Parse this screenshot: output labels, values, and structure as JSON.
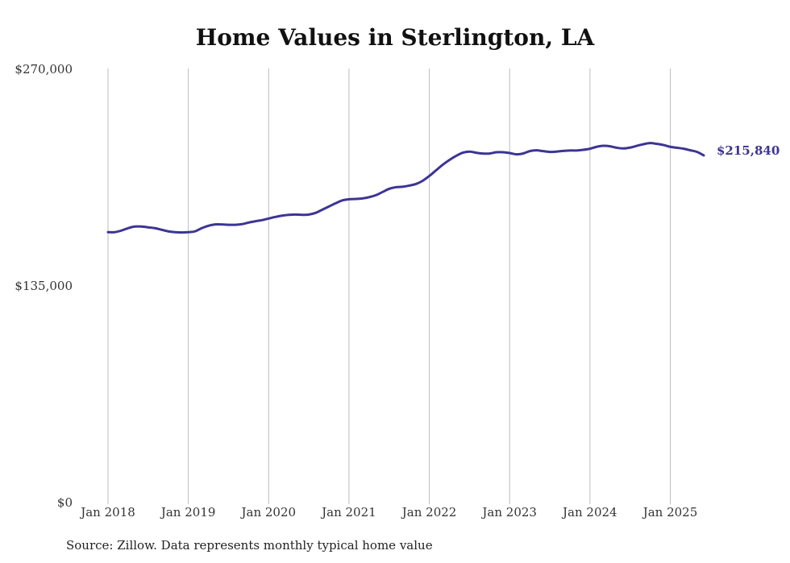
{
  "chart_data": {
    "type": "line",
    "title": "Home Values in Sterlington, LA",
    "xlabel": "",
    "ylabel": "",
    "ylim": [
      0,
      270000
    ],
    "y_ticks": [
      "$0",
      "$135,000",
      "$270,000"
    ],
    "y_tick_values": [
      0,
      135000,
      270000
    ],
    "x_ticks": [
      "Jan 2018",
      "Jan 2019",
      "Jan 2020",
      "Jan 2021",
      "Jan 2022",
      "Jan 2023",
      "Jan 2024",
      "Jan 2025"
    ],
    "x_tick_values": [
      "2018-01",
      "2019-01",
      "2020-01",
      "2021-01",
      "2022-01",
      "2023-01",
      "2024-01",
      "2025-01"
    ],
    "x_range": [
      "2018-01",
      "2025-06"
    ],
    "grid": "vertical",
    "legend": "none",
    "end_label": "$215,840",
    "series": [
      {
        "color": "#3b3594",
        "x": [
          "2018-01",
          "2018-02",
          "2018-03",
          "2018-04",
          "2018-05",
          "2018-06",
          "2018-07",
          "2018-08",
          "2018-09",
          "2018-10",
          "2018-11",
          "2018-12",
          "2019-01",
          "2019-02",
          "2019-03",
          "2019-04",
          "2019-05",
          "2019-06",
          "2019-07",
          "2019-08",
          "2019-09",
          "2019-10",
          "2019-11",
          "2019-12",
          "2020-01",
          "2020-02",
          "2020-03",
          "2020-04",
          "2020-05",
          "2020-06",
          "2020-07",
          "2020-08",
          "2020-09",
          "2020-10",
          "2020-11",
          "2020-12",
          "2021-01",
          "2021-02",
          "2021-03",
          "2021-04",
          "2021-05",
          "2021-06",
          "2021-07",
          "2021-08",
          "2021-09",
          "2021-10",
          "2021-11",
          "2021-12",
          "2022-01",
          "2022-02",
          "2022-03",
          "2022-04",
          "2022-05",
          "2022-06",
          "2022-07",
          "2022-08",
          "2022-09",
          "2022-10",
          "2022-11",
          "2022-12",
          "2023-01",
          "2023-02",
          "2023-03",
          "2023-04",
          "2023-05",
          "2023-06",
          "2023-07",
          "2023-08",
          "2023-09",
          "2023-10",
          "2023-11",
          "2023-12",
          "2024-01",
          "2024-02",
          "2024-03",
          "2024-04",
          "2024-05",
          "2024-06",
          "2024-07",
          "2024-08",
          "2024-09",
          "2024-10",
          "2024-11",
          "2024-12",
          "2025-01",
          "2025-02",
          "2025-03",
          "2025-04",
          "2025-05",
          "2025-06"
        ],
        "values": [
          168000,
          168000,
          169000,
          170500,
          171500,
          171500,
          171000,
          170500,
          169500,
          168500,
          168000,
          167800,
          168000,
          168500,
          170500,
          172000,
          172800,
          172800,
          172600,
          172600,
          173000,
          174000,
          174800,
          175500,
          176500,
          177500,
          178300,
          178800,
          179000,
          178800,
          179000,
          180000,
          182000,
          184000,
          186000,
          187800,
          188500,
          188700,
          189000,
          189800,
          191000,
          193000,
          195000,
          196000,
          196300,
          197000,
          198000,
          200000,
          203000,
          206500,
          210000,
          213000,
          215500,
          217500,
          218200,
          217500,
          217000,
          217000,
          217800,
          217800,
          217300,
          216500,
          217000,
          218500,
          219000,
          218500,
          218000,
          218200,
          218600,
          218900,
          218900,
          219300,
          220000,
          221200,
          221800,
          221500,
          220600,
          220200,
          220700,
          221800,
          222800,
          223500,
          223000,
          222300,
          221200,
          220600,
          220000,
          219000,
          218000,
          215840
        ]
      }
    ]
  },
  "source_note": "Source: Zillow. Data represents monthly typical home value"
}
